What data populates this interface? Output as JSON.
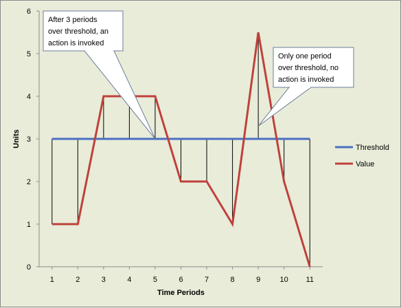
{
  "chart_data": {
    "type": "line",
    "x": [
      1,
      2,
      3,
      4,
      5,
      6,
      7,
      8,
      9,
      10,
      11
    ],
    "series": [
      {
        "name": "Threshold",
        "values": [
          3,
          3,
          3,
          3,
          3,
          3,
          3,
          3,
          3,
          3,
          3
        ],
        "color": "#4a6fc2"
      },
      {
        "name": "Value",
        "values": [
          1,
          1,
          4,
          4,
          4,
          2,
          2,
          1,
          5.5,
          2,
          0
        ],
        "color": "#c0403a"
      }
    ],
    "xlabel": "Time Periods",
    "ylabel": "Units",
    "ylim": [
      0,
      6
    ],
    "yticks": [
      0,
      1,
      2,
      3,
      4,
      5,
      6
    ],
    "xticks": [
      1,
      2,
      3,
      4,
      5,
      6,
      7,
      8,
      9,
      10,
      11
    ],
    "grid": false,
    "legend_position": "right",
    "drop_lines": true,
    "annotations": [
      {
        "lines": [
          "After 3 periods",
          "over threshold, an",
          "action is invoked"
        ],
        "points_to": {
          "x": 5,
          "y": 3
        }
      },
      {
        "lines": [
          "Only one period",
          "over threshold, no",
          "action is invoked"
        ],
        "points_to": {
          "x": 9,
          "y": 3.3
        }
      }
    ]
  }
}
